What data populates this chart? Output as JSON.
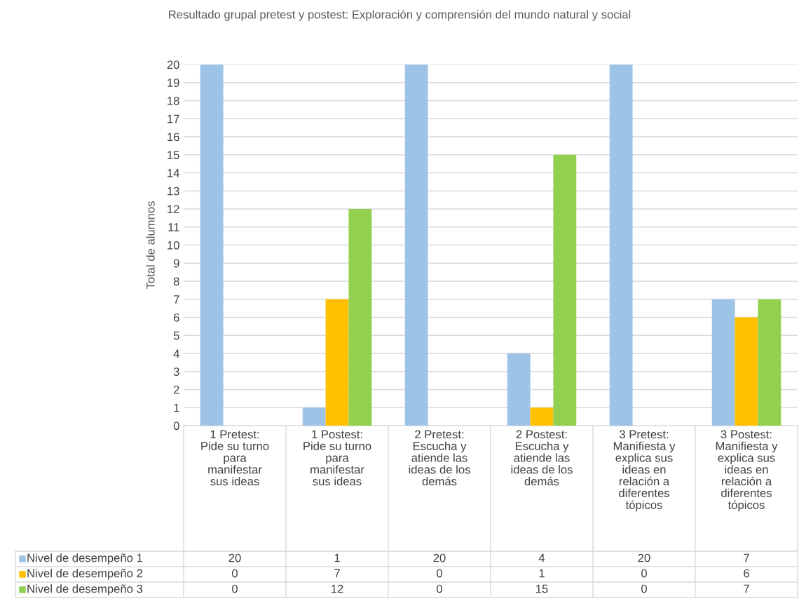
{
  "chart_data": {
    "type": "bar",
    "title": "Resultado grupal pretest y postest: Exploración y comprensión del mundo natural y social",
    "ylabel": "Total de alumnos",
    "categories": [
      "1 Pretest:\nPide su turno\npara\nmanifestar\nsus ideas",
      "1 Postest:\nPide su turno\npara\nmanifestar\nsus ideas",
      "2 Pretest:\nEscucha y\natiende las\nideas de los\ndemás",
      "2 Postest:\nEscucha y\natiende las\nideas de los\ndemás",
      "3 Pretest:\nManifiesta y\nexplica sus\nideas en\nrelación a\ndiferentes\ntópicos",
      "3 Postest:\nManifiesta y\nexplica sus\nideas en\nrelación a\ndiferentes\ntópicos"
    ],
    "series": [
      {
        "name": "Nivel de desempeño 1",
        "color": "#9dc3e6",
        "values": [
          20,
          1,
          20,
          4,
          20,
          7
        ]
      },
      {
        "name": "Nivel de desempeño 2",
        "color": "#ffc000",
        "values": [
          0,
          7,
          0,
          1,
          0,
          6
        ]
      },
      {
        "name": "Nivel de desempeño 3",
        "color": "#92d050",
        "values": [
          0,
          12,
          0,
          15,
          0,
          7
        ]
      }
    ],
    "ylim": [
      0,
      20
    ],
    "yticks": [
      0,
      1,
      2,
      3,
      4,
      5,
      6,
      7,
      8,
      9,
      10,
      11,
      12,
      13,
      14,
      15,
      16,
      17,
      18,
      19,
      20
    ],
    "grid": "y",
    "legend": "bottom",
    "data_labels": true
  }
}
